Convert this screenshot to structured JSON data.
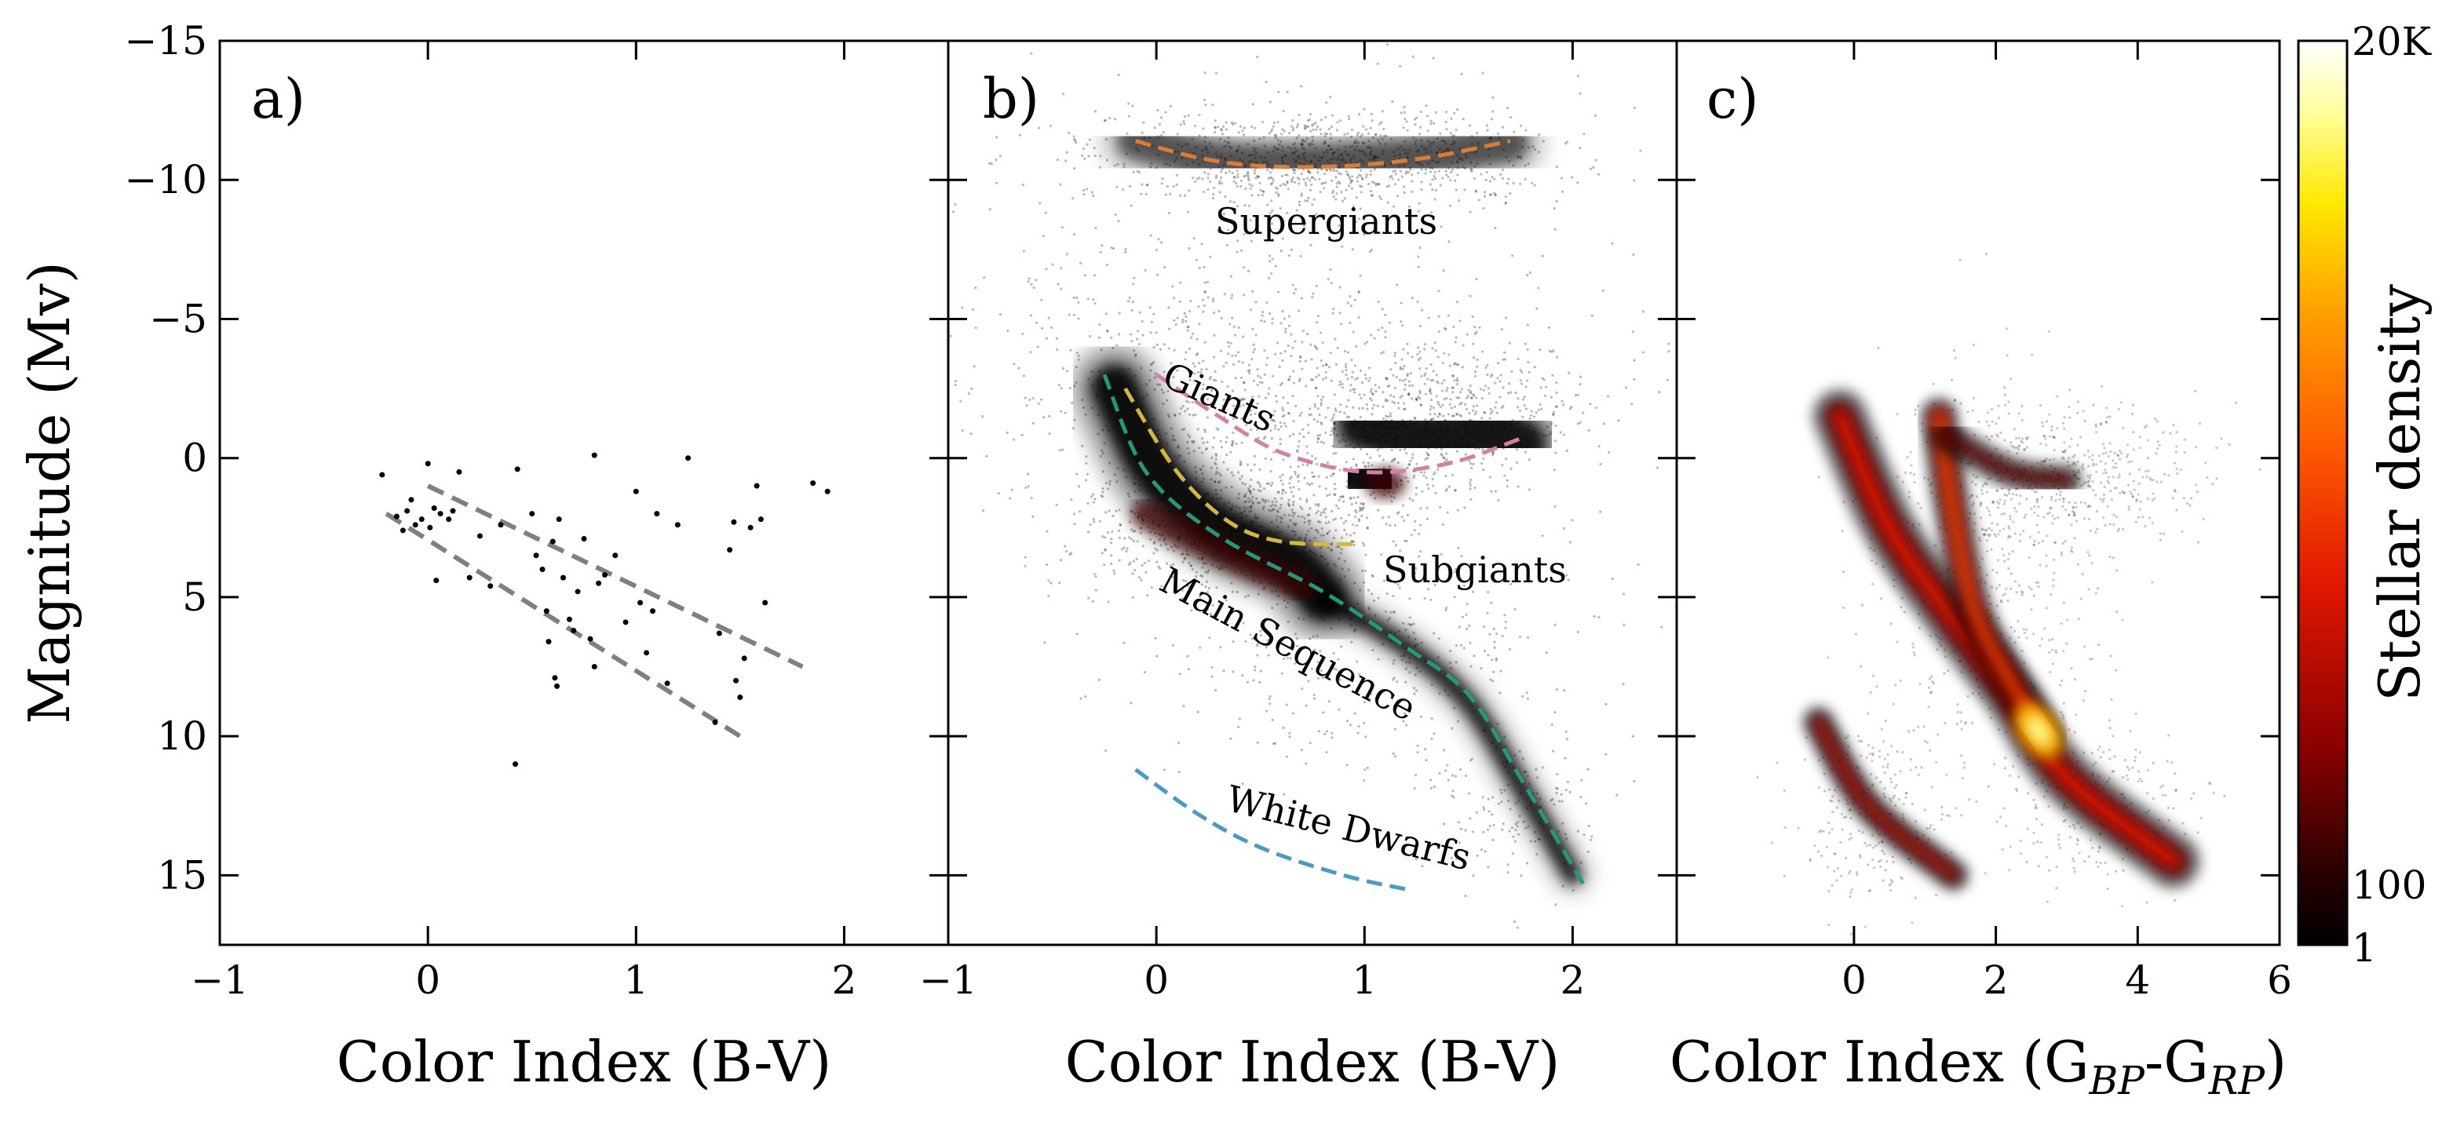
{
  "chart_data": [
    {
      "type": "scatter",
      "panel_label": "a)",
      "xlabel": "Color Index (B-V)",
      "ylabel": "Magnitude (Mv)",
      "xlim": [
        -1,
        2.5
      ],
      "ylim": [
        17.5,
        -15
      ],
      "xticks": [
        "−1",
        "0",
        "1",
        "2"
      ],
      "yticks": [
        "−15",
        "−10",
        "−5",
        "0",
        "5",
        "10",
        "15"
      ],
      "points": [
        [
          -0.22,
          0.6
        ],
        [
          -0.15,
          2.1
        ],
        [
          -0.12,
          2.6
        ],
        [
          -0.1,
          1.9
        ],
        [
          -0.08,
          1.5
        ],
        [
          -0.06,
          2.4
        ],
        [
          -0.03,
          2.2
        ],
        [
          0.0,
          0.2
        ],
        [
          0.01,
          2.5
        ],
        [
          0.03,
          1.8
        ],
        [
          0.04,
          4.4
        ],
        [
          0.06,
          2.0
        ],
        [
          0.1,
          2.2
        ],
        [
          0.12,
          1.9
        ],
        [
          0.15,
          0.5
        ],
        [
          0.2,
          4.3
        ],
        [
          0.25,
          2.8
        ],
        [
          0.3,
          4.6
        ],
        [
          0.35,
          2.4
        ],
        [
          0.42,
          11.0
        ],
        [
          0.43,
          0.4
        ],
        [
          0.5,
          2.0
        ],
        [
          0.52,
          3.5
        ],
        [
          0.55,
          4.0
        ],
        [
          0.57,
          5.5
        ],
        [
          0.58,
          6.6
        ],
        [
          0.6,
          3.0
        ],
        [
          0.61,
          7.9
        ],
        [
          0.62,
          8.2
        ],
        [
          0.63,
          2.2
        ],
        [
          0.65,
          4.3
        ],
        [
          0.68,
          5.8
        ],
        [
          0.7,
          6.2
        ],
        [
          0.72,
          4.8
        ],
        [
          0.75,
          2.9
        ],
        [
          0.78,
          6.5
        ],
        [
          0.8,
          7.5
        ],
        [
          0.8,
          -0.1
        ],
        [
          0.82,
          4.5
        ],
        [
          0.85,
          4.2
        ],
        [
          0.9,
          3.5
        ],
        [
          0.95,
          5.9
        ],
        [
          1.0,
          1.2
        ],
        [
          1.02,
          5.2
        ],
        [
          1.05,
          7.0
        ],
        [
          1.08,
          5.5
        ],
        [
          1.1,
          2.0
        ],
        [
          1.15,
          8.1
        ],
        [
          1.2,
          2.4
        ],
        [
          1.25,
          0.0
        ],
        [
          1.4,
          6.3
        ],
        [
          1.45,
          3.3
        ],
        [
          1.47,
          2.3
        ],
        [
          1.5,
          8.6
        ],
        [
          1.52,
          7.2
        ],
        [
          1.55,
          2.5
        ],
        [
          1.58,
          1.0
        ],
        [
          1.6,
          2.2
        ],
        [
          1.62,
          5.2
        ],
        [
          1.85,
          0.9
        ],
        [
          1.92,
          1.2
        ],
        [
          1.48,
          8.0
        ],
        [
          1.38,
          9.5
        ]
      ],
      "guide_lines": [
        {
          "x": [
            0.0,
            1.8
          ],
          "y": [
            1.0,
            7.5
          ]
        },
        {
          "x": [
            -0.2,
            1.5
          ],
          "y": [
            2.0,
            10.0
          ]
        }
      ]
    },
    {
      "type": "scatter",
      "panel_label": "b)",
      "xlabel": "Color Index (B-V)",
      "xlim": [
        -1,
        2.5
      ],
      "ylim": [
        17.5,
        -15
      ],
      "xticks": [
        "−1",
        "0",
        "1",
        "2"
      ],
      "annotations": [
        "Supergiants",
        "Giants",
        "Subgiants",
        "Main Sequence",
        "White Dwarfs"
      ],
      "sequences": [
        {
          "name": "Supergiants",
          "color": "#e07b2d",
          "x": [
            -0.1,
            0.2,
            0.5,
            0.9,
            1.3,
            1.7
          ],
          "y": [
            -11.4,
            -10.8,
            -10.5,
            -10.5,
            -10.8,
            -11.4
          ]
        },
        {
          "name": "Giants",
          "color": "#d47fa6",
          "x": [
            0.0,
            0.3,
            0.6,
            1.0,
            1.4,
            1.75
          ],
          "y": [
            -3.0,
            -1.5,
            -0.2,
            0.5,
            0.2,
            -0.7
          ]
        },
        {
          "name": "Subgiants",
          "color": "#d4b83a",
          "x": [
            -0.15,
            0.1,
            0.35,
            0.6,
            0.95
          ],
          "y": [
            -2.5,
            0.5,
            2.3,
            3.0,
            3.1
          ]
        },
        {
          "name": "Main Sequence",
          "color": "#1f9a7a",
          "x": [
            -0.25,
            -0.05,
            0.3,
            0.8,
            1.2,
            1.5,
            1.75,
            2.05
          ],
          "y": [
            -3.0,
            0.5,
            2.8,
            4.8,
            6.8,
            8.5,
            11.5,
            15.3
          ]
        },
        {
          "name": "White Dwarfs",
          "color": "#4a9ac8",
          "x": [
            -0.1,
            0.2,
            0.5,
            0.9,
            1.2
          ],
          "y": [
            11.2,
            12.8,
            14.0,
            15.0,
            15.5
          ]
        }
      ]
    },
    {
      "type": "heatmap",
      "panel_label": "c)",
      "xlabel": "Color Index (G",
      "xlabel_sub1": "BP",
      "xlabel_mid": "-G",
      "xlabel_sub2": "RP",
      "xlabel_end": ")",
      "xlim": [
        -2.5,
        6
      ],
      "ylim": [
        17.5,
        -15
      ],
      "xticks": [
        "0",
        "2",
        "4",
        "6"
      ],
      "colorbar": {
        "label": "Stellar density",
        "ticks": [
          "20K",
          "100",
          "1"
        ],
        "colormap": [
          "#000000",
          "#5a0000",
          "#c01000",
          "#ff4000",
          "#ff9000",
          "#ffe000",
          "#ffff90",
          "#ffffff"
        ]
      }
    }
  ]
}
